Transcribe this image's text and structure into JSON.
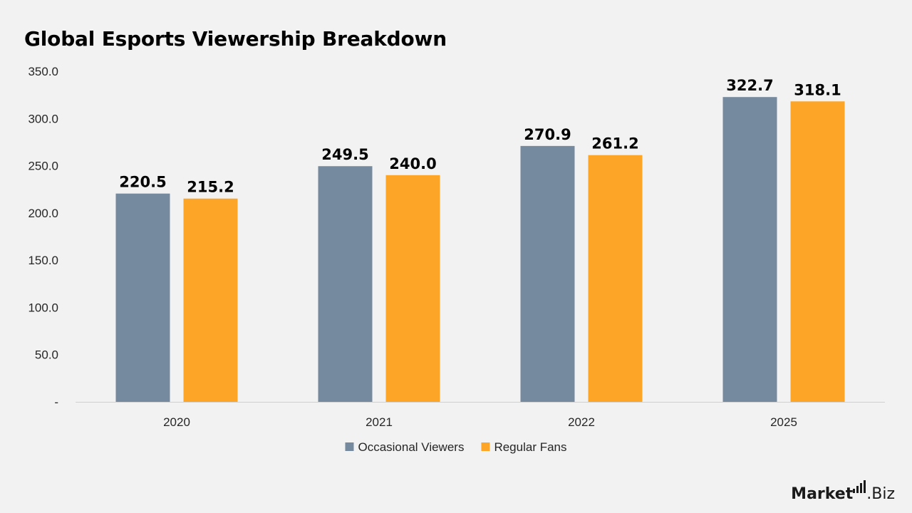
{
  "chart_data": {
    "type": "bar",
    "title": "Global Esports Viewership Breakdown",
    "categories": [
      "2020",
      "2021",
      "2022",
      "2025"
    ],
    "series": [
      {
        "name": "Occasional Viewers",
        "color": "#768a9f",
        "values": [
          220.5,
          249.5,
          270.9,
          322.7
        ],
        "labels": [
          "220.5",
          "249.5",
          "270.9",
          "322.7"
        ]
      },
      {
        "name": "Regular Fans",
        "color": "#fca526",
        "values": [
          215.2,
          240.0,
          261.2,
          318.1
        ],
        "labels": [
          "215.2",
          "240.0",
          "261.2",
          "318.1"
        ]
      }
    ],
    "ylim": [
      0,
      350
    ],
    "yticks": [
      0,
      50,
      100,
      150,
      200,
      250,
      300,
      350
    ],
    "ytick_labels": [
      "-",
      "50.0",
      "100.0",
      "150.0",
      "200.0",
      "250.0",
      "300.0",
      "350.0"
    ],
    "grid": false,
    "legend": "bottom"
  },
  "brand": {
    "name_bold": "Market",
    "name_light": ".Biz"
  }
}
